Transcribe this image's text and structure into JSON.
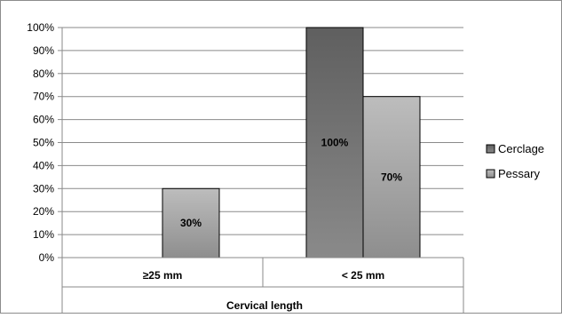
{
  "chart_data": {
    "type": "bar",
    "categories": [
      "≥25 mm",
      "< 25 mm"
    ],
    "series": [
      {
        "name": "Cerclage",
        "values": [
          0,
          100
        ],
        "labels": [
          "",
          "100%"
        ],
        "color": "#6f6f6f"
      },
      {
        "name": "Pessary",
        "values": [
          30,
          70
        ],
        "labels": [
          "30%",
          "70%"
        ],
        "color": "#a9a9a9"
      }
    ],
    "xlabel": "Cervical length",
    "ylabel": "",
    "ylim": [
      0,
      100
    ],
    "yticks": [
      0,
      10,
      20,
      30,
      40,
      50,
      60,
      70,
      80,
      90,
      100
    ],
    "ytick_suffix": "%",
    "grid": true,
    "legend_position": "right"
  }
}
